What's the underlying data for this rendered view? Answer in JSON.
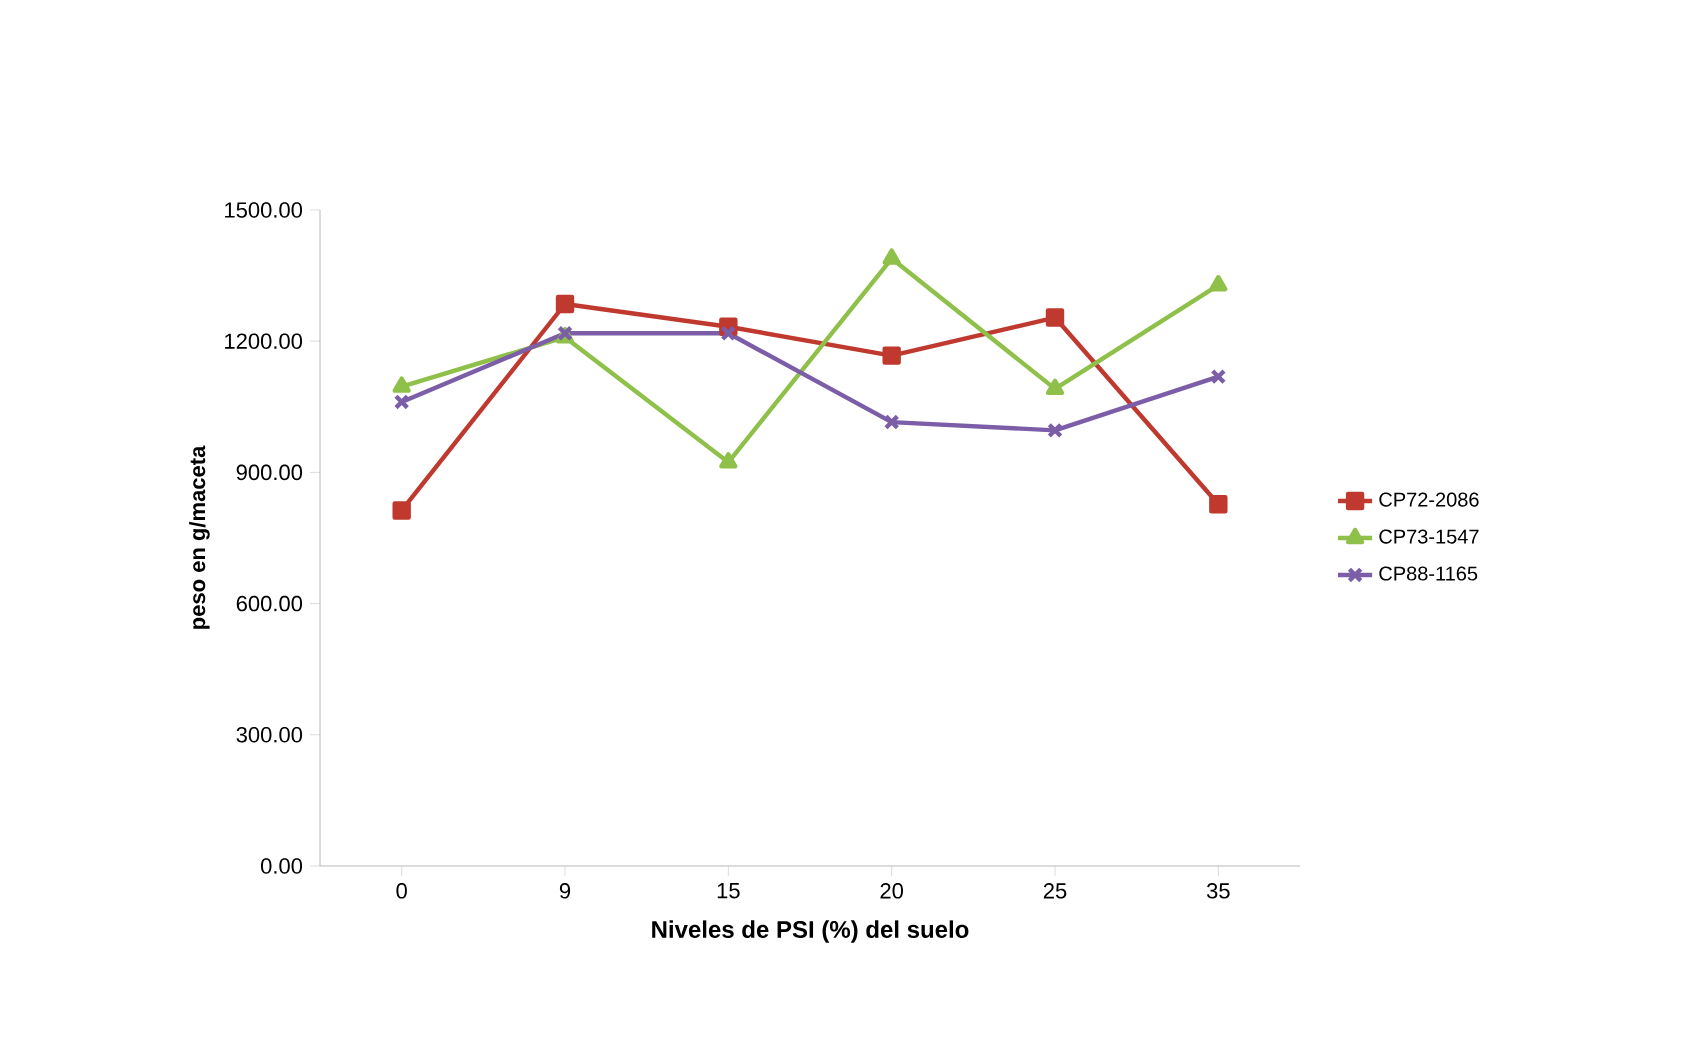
{
  "chart_data": {
    "type": "line",
    "xlabel": "Niveles de PSI (%) del suelo",
    "ylabel": "peso en g/maceta",
    "categories": [
      "0",
      "9",
      "15",
      "20",
      "25",
      "35"
    ],
    "series": [
      {
        "name": "CP72-2086",
        "color": "#c0392f",
        "marker": "square",
        "values": [
          813,
          1285,
          1233,
          1167,
          1254,
          827
        ]
      },
      {
        "name": "CP73-1547",
        "color": "#8ec04a",
        "marker": "triangle",
        "values": [
          1096,
          1209,
          923,
          1389,
          1091,
          1328
        ]
      },
      {
        "name": "CP88-1165",
        "color": "#7b5ea7",
        "marker": "cross",
        "values": [
          1061,
          1218,
          1218,
          1015,
          996,
          1119
        ]
      }
    ],
    "ylim": [
      0,
      1500
    ],
    "yticks": [
      {
        "value": 0,
        "label": "0.00"
      },
      {
        "value": 300,
        "label": "300.00"
      },
      {
        "value": 600,
        "label": "600.00"
      },
      {
        "value": 900,
        "label": "900.00"
      },
      {
        "value": 1200,
        "label": "1200.00"
      },
      {
        "value": 1500,
        "label": "1500.00"
      }
    ],
    "grid": false,
    "legend": "right",
    "line_style": "solid"
  }
}
